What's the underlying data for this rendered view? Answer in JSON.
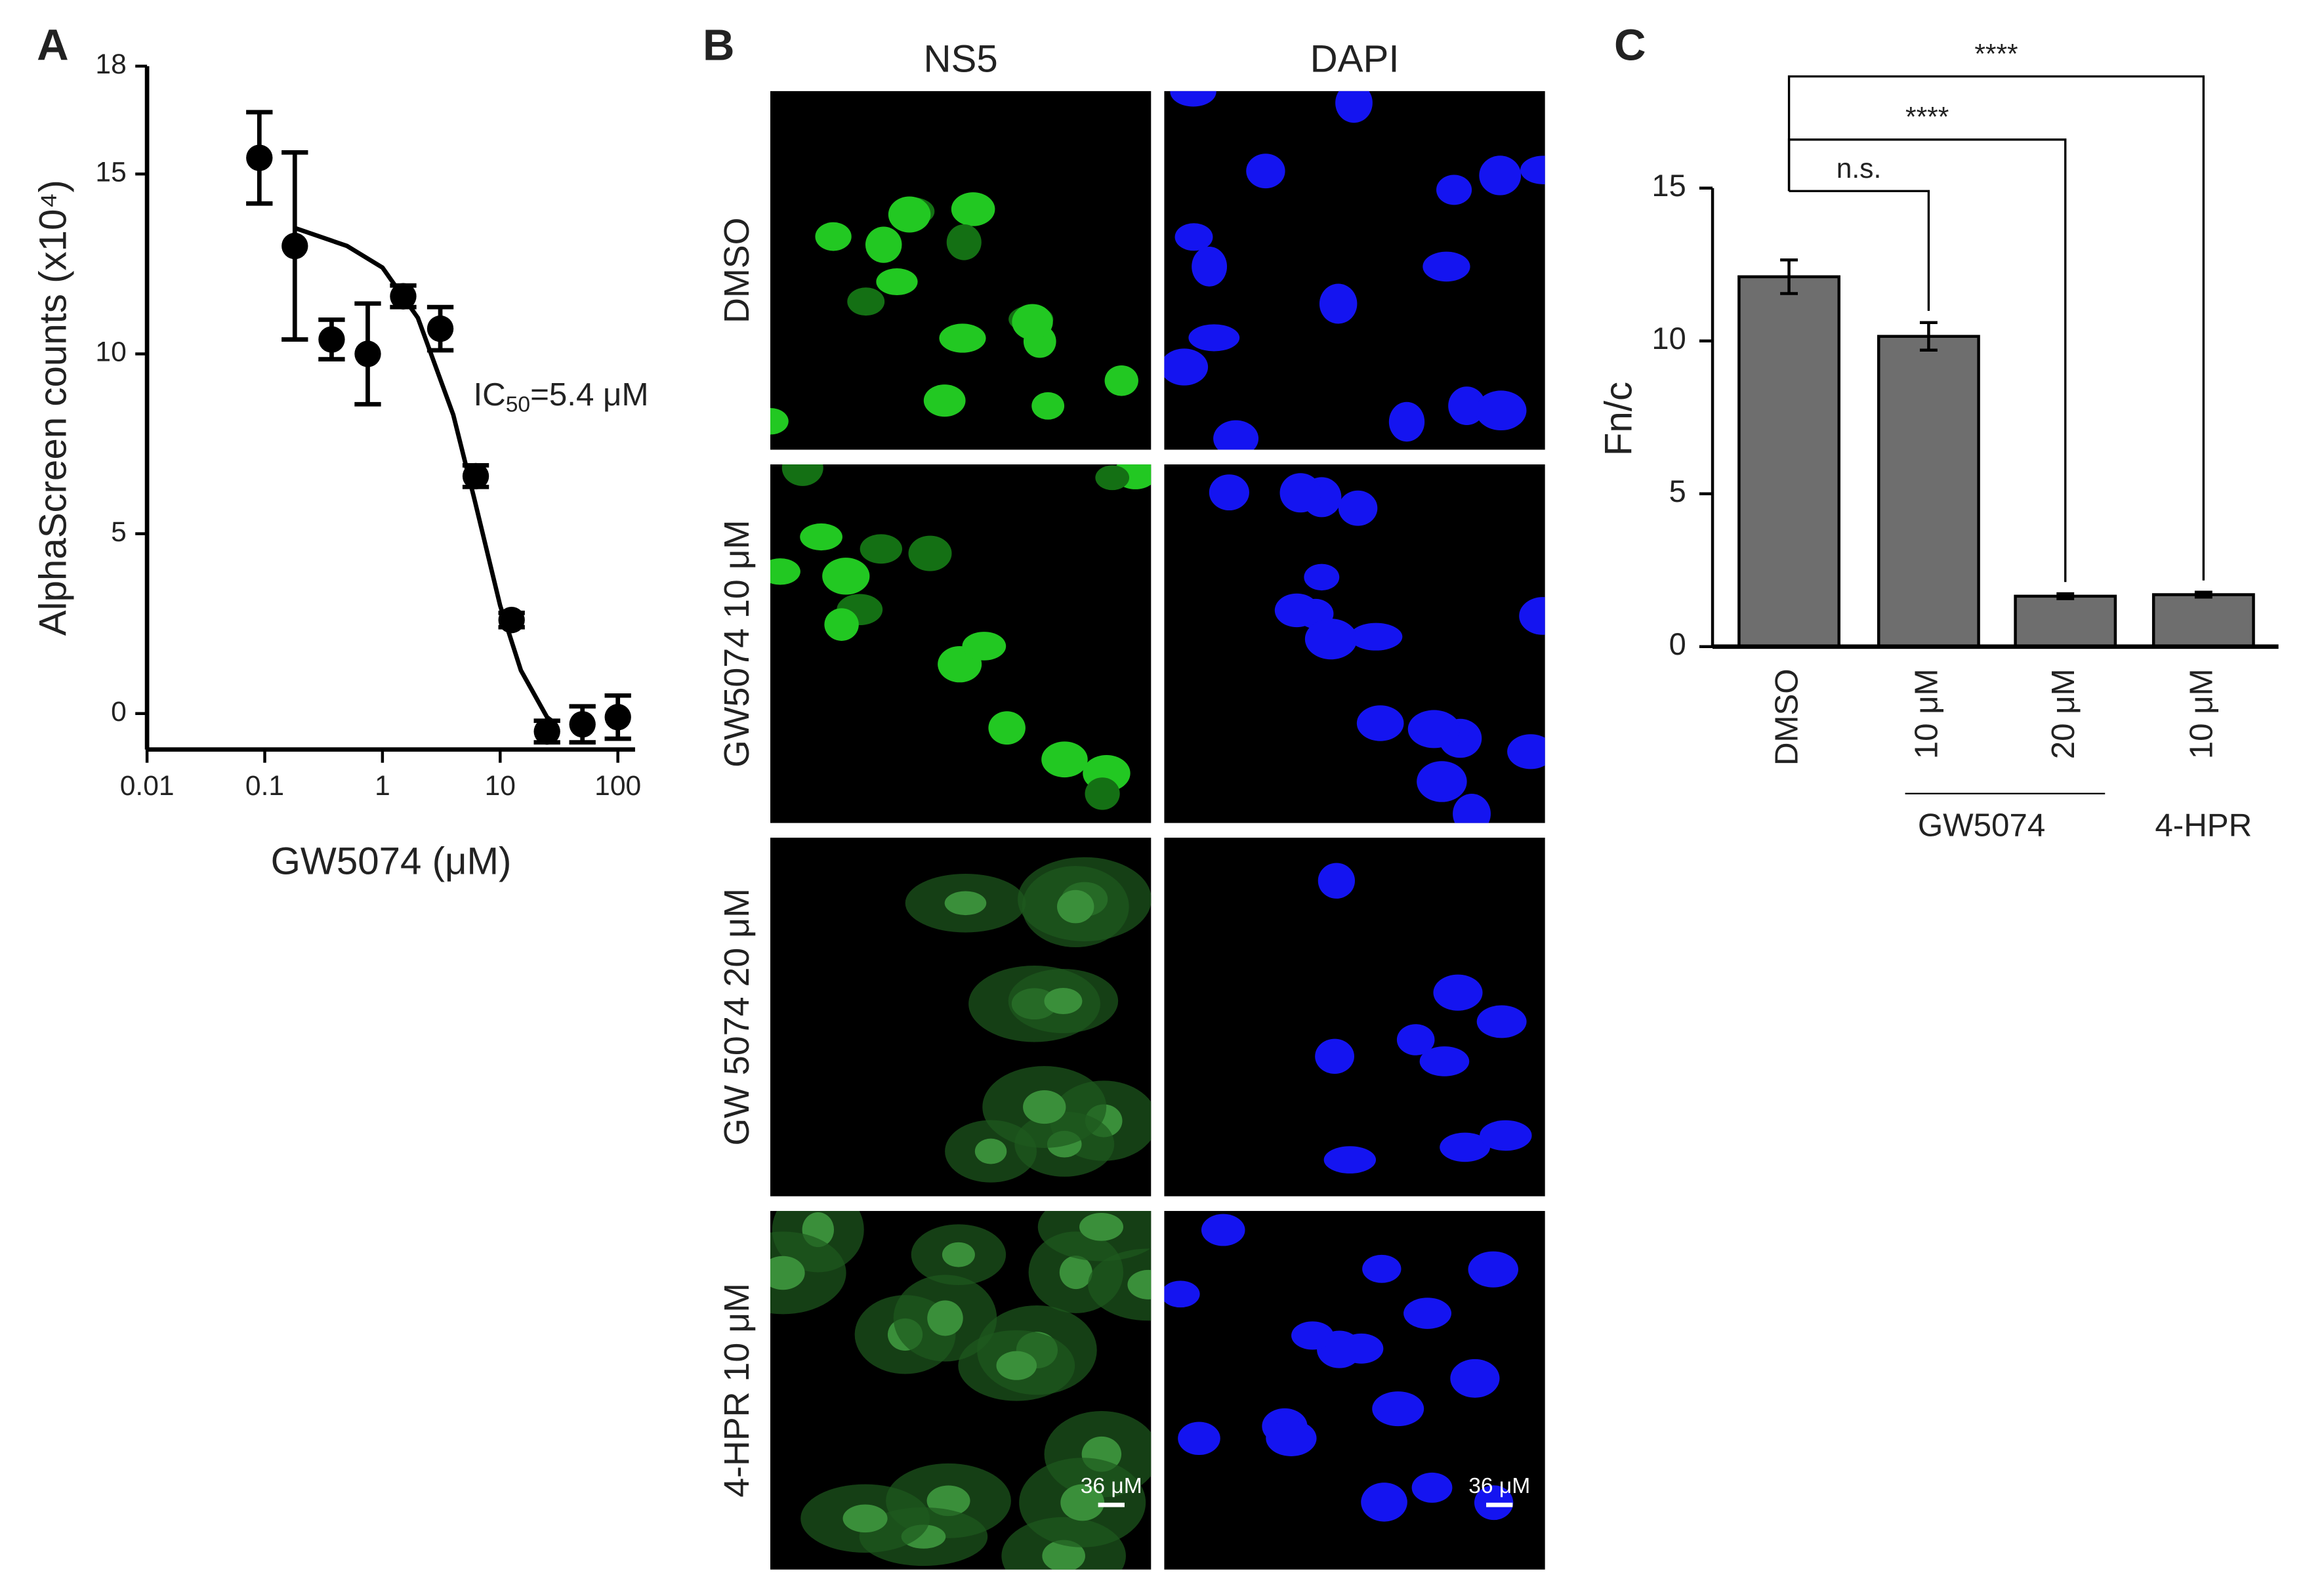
{
  "chart_data": [
    {
      "type": "scatter",
      "label": "A",
      "xlabel": "GW5074 (μM)",
      "ylabel": "AlphaScreen counts (x10⁴)",
      "xscale": "log",
      "xlim": [
        0.01,
        140
      ],
      "ylim": [
        -1,
        18
      ],
      "xticks": [
        0.01,
        0.1,
        1,
        10,
        100
      ],
      "yticks": [
        0,
        5,
        10,
        15,
        18
      ],
      "color": "#000000",
      "annotation": {
        "text": "IC",
        "subscript": "50",
        "suffix": "=5.4 μM"
      },
      "series": [
        {
          "type": "scatter",
          "x": [
            0.09,
            0.18,
            0.37,
            0.75,
            1.5,
            3.1,
            6.2,
            12.5,
            25,
            50,
            100
          ],
          "values": [
            15.45,
            13.0,
            10.4,
            10.0,
            11.6,
            10.7,
            6.6,
            2.6,
            -0.5,
            -0.3,
            -0.1
          ],
          "errors": [
            1.27,
            2.6,
            0.55,
            1.4,
            0.3,
            0.6,
            0.3,
            0.2,
            0.3,
            0.5,
            0.6
          ]
        },
        {
          "type": "line",
          "x": [
            0.18,
            0.5,
            1,
            2,
            4,
            6,
            10,
            15,
            25,
            30
          ],
          "values": [
            13.5,
            13.0,
            12.4,
            11.0,
            8.3,
            6.0,
            3.0,
            1.2,
            -0.1,
            -0.3
          ]
        }
      ]
    },
    {
      "type": "bar",
      "label": "C",
      "ylabel": "Fn/c",
      "categories": [
        "DMSO",
        "10 μM",
        "20 μM",
        "10 μM"
      ],
      "values": [
        12.1,
        10.15,
        1.65,
        1.7
      ],
      "errors": [
        0.55,
        0.45,
        0.08,
        0.08
      ],
      "groups": [
        "GW5074",
        "4-HPR"
      ],
      "significance": [
        "n.s.",
        "****",
        "****"
      ],
      "ylim": [
        0,
        15
      ],
      "yticks": [
        0,
        5,
        10,
        15
      ],
      "color": "#6e6e6e"
    }
  ],
  "panel_b": {
    "label": "B",
    "columns": [
      "NS5",
      "DAPI"
    ],
    "rows": [
      "DMSO",
      "GW5074 10 μM",
      "GW 5074 20 μM",
      "4-HPR 10 μM"
    ],
    "scale_bar": "36 μM"
  }
}
